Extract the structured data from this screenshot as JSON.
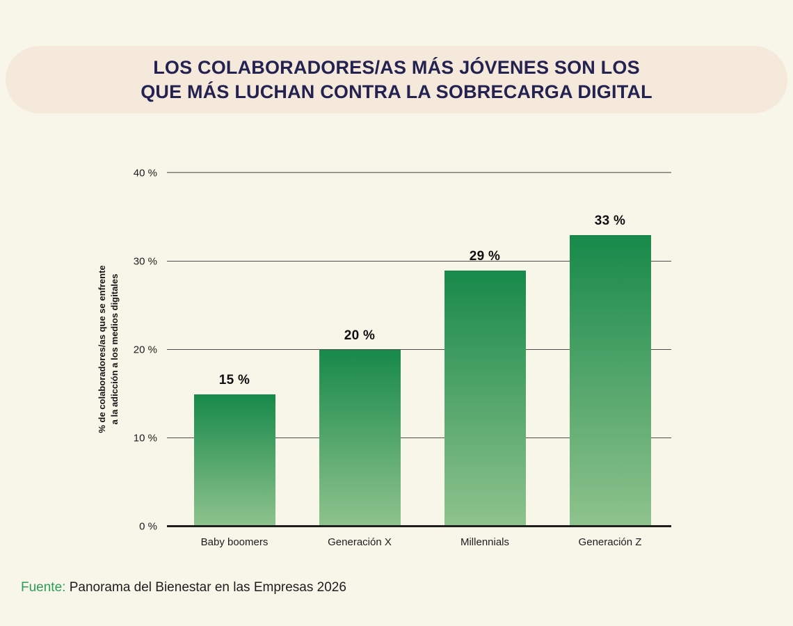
{
  "page": {
    "background": "#f8f6e9"
  },
  "banner": {
    "background": "#f4e9da",
    "title_color": "#232250"
  },
  "chart_data": {
    "type": "bar",
    "title": "LOS COLABORADORES/AS MÁS JÓVENES SON LOS QUE MÁS LUCHAN CONTRA LA SOBRECARGA DIGITAL",
    "title_lines": [
      "LOS COLABORADORES/AS MÁS JÓVENES SON LOS",
      "QUE MÁS LUCHAN CONTRA LA SOBRECARGA DIGITAL"
    ],
    "categories": [
      "Baby boomers",
      "Generación X",
      "Millennials",
      "Generación Z"
    ],
    "values": [
      15,
      20,
      29,
      33
    ],
    "value_labels": [
      "15 %",
      "20 %",
      "29 %",
      "33 %"
    ],
    "xlabel": "",
    "ylabel": "% de colaboradores/as que se enfrente a la adicción a los medios digitales",
    "ylabel_lines": [
      "% de colaboradores/as que se enfrente",
      "a la adicción a los medios digitales"
    ],
    "yticks": [
      0,
      10,
      20,
      30,
      40
    ],
    "ytick_labels": [
      "0 %",
      "10 %",
      "20 %",
      "30 %",
      "40 %"
    ],
    "ylim": [
      0,
      40
    ],
    "grid": true,
    "legend": false,
    "bar_gradient_top": "#17894a",
    "bar_gradient_bottom": "#8fc38d",
    "gridline_color": "#4c4c48",
    "axis_color": "#1e1e1c"
  },
  "footer": {
    "source_label": "Fuente:",
    "source_text": "Panorama del Bienestar en las Empresas 2026",
    "source_label_color": "#2a9e58"
  }
}
